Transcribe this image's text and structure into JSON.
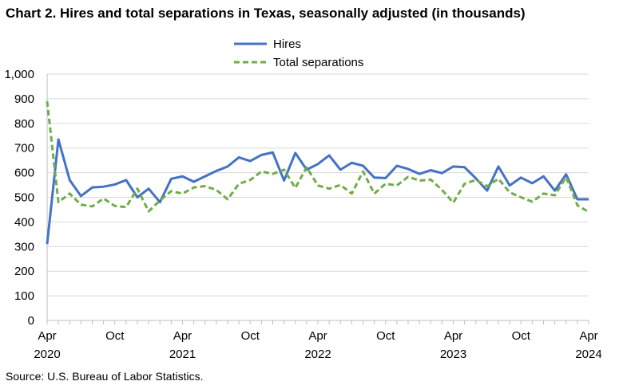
{
  "page": {
    "title": "Chart 2. Hires and total separations in Texas, seasonally adjusted (in thousands)",
    "source": "Source: U.S. Bureau of Labor Statistics."
  },
  "chart_data": {
    "type": "line",
    "x_start": "2020-04",
    "ylim": [
      0,
      1000
    ],
    "yticks": [
      0,
      100,
      200,
      300,
      400,
      500,
      600,
      700,
      800,
      900,
      1000
    ],
    "ytick_labels": [
      "0",
      "100",
      "200",
      "300",
      "400",
      "500",
      "600",
      "700",
      "800",
      "900",
      "1,000"
    ],
    "xticks": [
      {
        "month": "2020-04",
        "label": "Apr",
        "year": "2020"
      },
      {
        "month": "2020-10",
        "label": "Oct",
        "year": ""
      },
      {
        "month": "2021-04",
        "label": "Apr",
        "year": "2021"
      },
      {
        "month": "2021-10",
        "label": "Oct",
        "year": ""
      },
      {
        "month": "2022-04",
        "label": "Apr",
        "year": "2022"
      },
      {
        "month": "2022-10",
        "label": "Oct",
        "year": ""
      },
      {
        "month": "2023-04",
        "label": "Apr",
        "year": "2023"
      },
      {
        "month": "2023-10",
        "label": "Oct",
        "year": ""
      },
      {
        "month": "2024-04",
        "label": "Apr",
        "year": "2024"
      }
    ],
    "grid": true,
    "legend_position": "top-center",
    "series": [
      {
        "name": "Hires",
        "color": "#4472C4",
        "style": "solid",
        "values": [
          310,
          735,
          570,
          505,
          540,
          543,
          552,
          570,
          500,
          535,
          480,
          575,
          585,
          563,
          585,
          607,
          625,
          662,
          647,
          672,
          682,
          568,
          680,
          612,
          635,
          670,
          612,
          640,
          628,
          580,
          578,
          628,
          615,
          595,
          610,
          598,
          625,
          622,
          577,
          527,
          625,
          548,
          580,
          557,
          585,
          527,
          593,
          492,
          492
        ]
      },
      {
        "name": "Total separations",
        "color": "#70AD47",
        "style": "dashed",
        "values": [
          890,
          480,
          515,
          470,
          463,
          495,
          465,
          460,
          535,
          443,
          487,
          525,
          515,
          540,
          545,
          530,
          492,
          555,
          570,
          605,
          595,
          612,
          538,
          622,
          548,
          535,
          550,
          515,
          605,
          515,
          555,
          548,
          583,
          568,
          572,
          530,
          478,
          555,
          570,
          545,
          575,
          520,
          500,
          482,
          515,
          508,
          582,
          468,
          440
        ]
      }
    ]
  }
}
